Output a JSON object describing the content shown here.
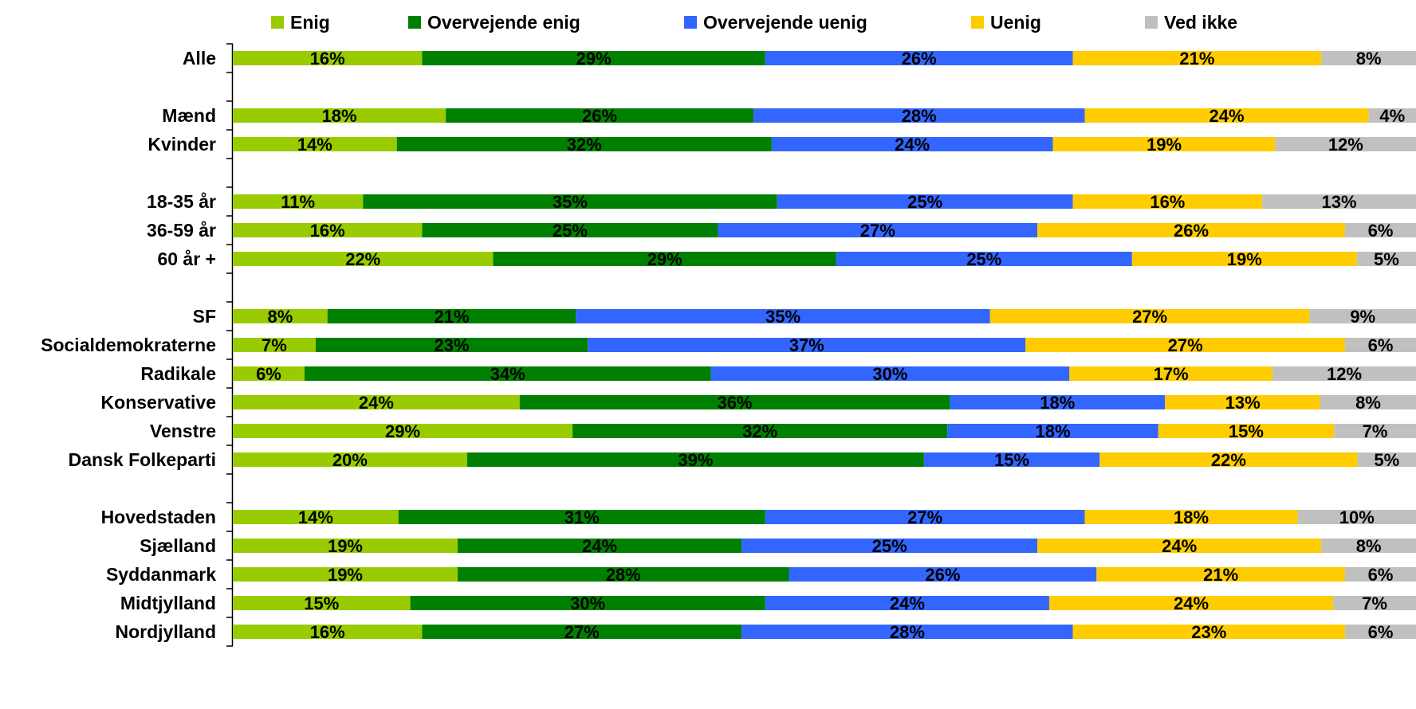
{
  "chart_data": {
    "type": "bar",
    "orientation": "horizontal",
    "stacked": true,
    "percent_stacked": true,
    "legend_position": "top",
    "grid": false,
    "colors": {
      "Enig": "#99cc00",
      "Overvejende enig": "#008000",
      "Overvejende uenig": "#3366ff",
      "Uenig": "#ffcc00",
      "Ved ikke": "#c0c0c0"
    },
    "legend": [
      "Enig",
      "Overvejende enig",
      "Overvejende uenig",
      "Uenig",
      "Ved ikke"
    ],
    "rows": [
      {
        "label": "Alle",
        "values": [
          16,
          29,
          26,
          21,
          8
        ]
      },
      {
        "label": "",
        "values": []
      },
      {
        "label": "Mænd",
        "values": [
          18,
          26,
          28,
          24,
          4
        ]
      },
      {
        "label": "Kvinder",
        "values": [
          14,
          32,
          24,
          19,
          12
        ]
      },
      {
        "label": "",
        "values": []
      },
      {
        "label": "18-35 år",
        "values": [
          11,
          35,
          25,
          16,
          13
        ]
      },
      {
        "label": "36-59 år",
        "values": [
          16,
          25,
          27,
          26,
          6
        ]
      },
      {
        "label": "60 år +",
        "values": [
          22,
          29,
          25,
          19,
          5
        ]
      },
      {
        "label": "",
        "values": []
      },
      {
        "label": "SF",
        "values": [
          8,
          21,
          35,
          27,
          9
        ]
      },
      {
        "label": "Socialdemokraterne",
        "values": [
          7,
          23,
          37,
          27,
          6
        ]
      },
      {
        "label": "Radikale",
        "values": [
          6,
          34,
          30,
          17,
          12
        ]
      },
      {
        "label": "Konservative",
        "values": [
          24,
          36,
          18,
          13,
          8
        ]
      },
      {
        "label": "Venstre",
        "values": [
          29,
          32,
          18,
          15,
          7
        ]
      },
      {
        "label": "Dansk Folkeparti",
        "values": [
          20,
          39,
          15,
          22,
          5
        ]
      },
      {
        "label": "",
        "values": []
      },
      {
        "label": "Hovedstaden",
        "values": [
          14,
          31,
          27,
          18,
          10
        ]
      },
      {
        "label": "Sjælland",
        "values": [
          19,
          24,
          25,
          24,
          8
        ]
      },
      {
        "label": "Syddanmark",
        "values": [
          19,
          28,
          26,
          21,
          6
        ]
      },
      {
        "label": "Midtjylland",
        "values": [
          15,
          30,
          24,
          24,
          7
        ]
      },
      {
        "label": "Nordjylland",
        "values": [
          16,
          27,
          28,
          23,
          6
        ]
      }
    ],
    "value_suffix": "%"
  }
}
